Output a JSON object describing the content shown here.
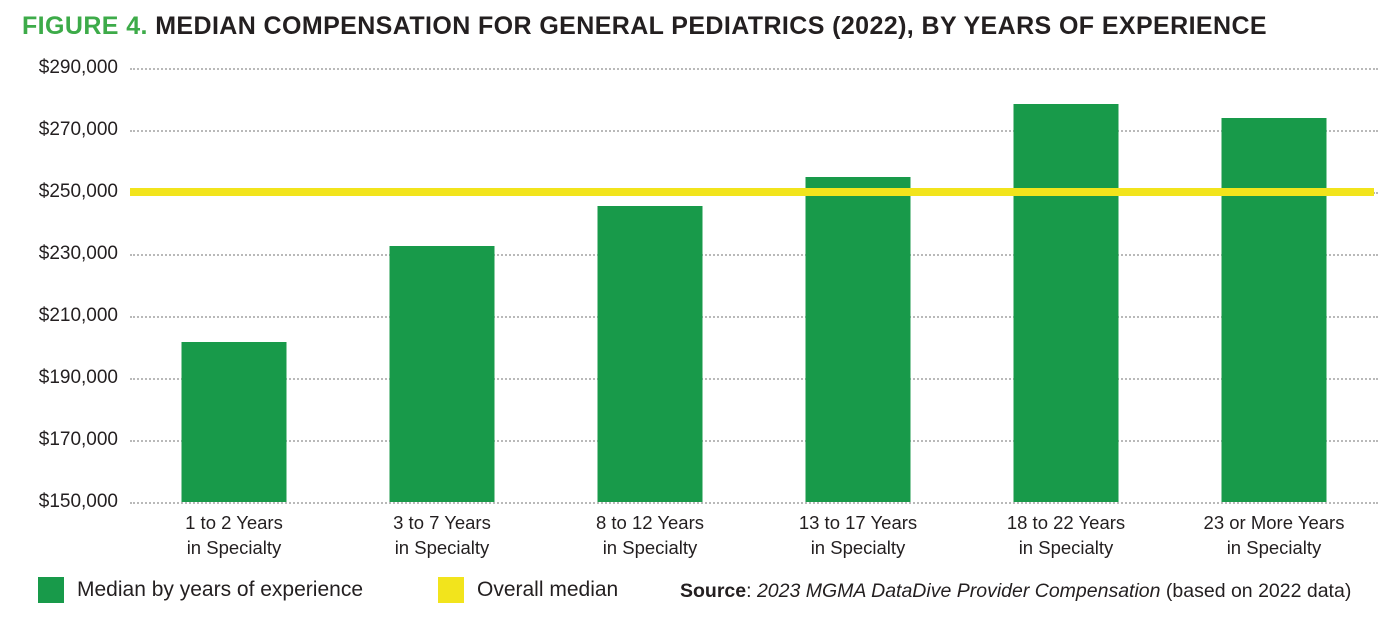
{
  "page": {
    "title_figure": "FIGURE 4.",
    "title_rest": " MEDIAN COMPENSATION FOR GENERAL PEDIATRICS (2022), BY YEARS OF EXPERIENCE"
  },
  "colors": {
    "bar_green": "#189a4a",
    "median_yellow": "#f2e41c",
    "title_green": "#3dab49",
    "text": "#231f20",
    "gridline": "#b9b9b9"
  },
  "chart_data": {
    "type": "bar",
    "title": "FIGURE 4. MEDIAN COMPENSATION FOR GENERAL PEDIATRICS (2022), BY YEARS OF EXPERIENCE",
    "categories": [
      "1 to 2 Years\nin Specialty",
      "3 to 7 Years\nin Specialty",
      "8 to 12 Years\nin Specialty",
      "13 to 17 Years\nin Specialty",
      "18 to 22 Years\nin Specialty",
      "23 or More Years\nin Specialty"
    ],
    "series": [
      {
        "name": "Median by years of experience",
        "values": [
          201500,
          232500,
          245500,
          255000,
          278500,
          274000
        ]
      }
    ],
    "overall_median": {
      "name": "Overall median",
      "value": 250000
    },
    "xlabel": "",
    "ylabel": "",
    "ylim": [
      150000,
      290000
    ],
    "grid": "horizontal dotted",
    "legend_position": "bottom-left",
    "yticks": [
      {
        "value": 290000,
        "label": "$290,000"
      },
      {
        "value": 270000,
        "label": "$270,000"
      },
      {
        "value": 250000,
        "label": "$250,000"
      },
      {
        "value": 230000,
        "label": "$230,000"
      },
      {
        "value": 210000,
        "label": "$210,000"
      },
      {
        "value": 190000,
        "label": "$190,000"
      },
      {
        "value": 170000,
        "label": "$170,000"
      },
      {
        "value": 150000,
        "label": "$150,000"
      }
    ]
  },
  "legend": {
    "items": [
      {
        "label": "Median by years of experience",
        "swatch": "bar_green"
      },
      {
        "label": "Overall median",
        "swatch": "median_yellow"
      }
    ]
  },
  "source": {
    "prefix": "Source",
    "colon": ": ",
    "citation": "2023 MGMA DataDive Provider Compensation",
    "suffix": " (based on 2022 data)"
  }
}
